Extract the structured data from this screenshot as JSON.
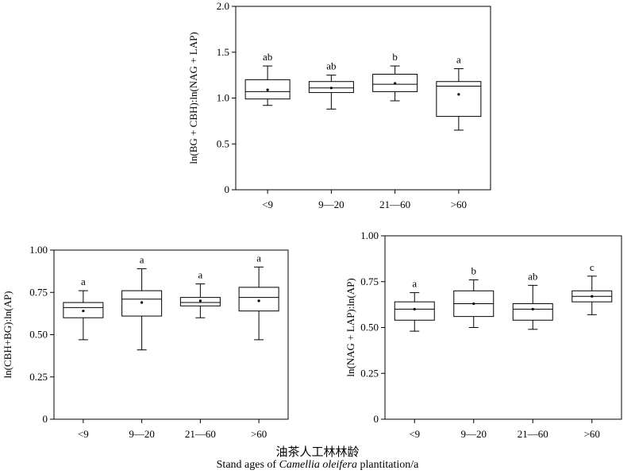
{
  "chart_data": [
    {
      "type": "box",
      "ylabel": "ln(BG + CBH):ln(NAG + LAP)",
      "ylim": [
        0,
        2.0
      ],
      "yticks": [
        "0",
        "0.5",
        "1.0",
        "1.5",
        "2.0"
      ],
      "yticks_values": [
        0,
        0.5,
        1.0,
        1.5,
        2.0
      ],
      "categories": [
        "<9",
        "9—20",
        "21—60",
        ">60"
      ],
      "boxes": [
        {
          "whisker_low": 0.92,
          "q1": 0.99,
          "median": 1.07,
          "q3": 1.2,
          "whisker_high": 1.35,
          "mean": 1.09,
          "letter": "ab"
        },
        {
          "whisker_low": 0.88,
          "q1": 1.06,
          "median": 1.11,
          "q3": 1.18,
          "whisker_high": 1.25,
          "mean": 1.11,
          "letter": "ab"
        },
        {
          "whisker_low": 0.97,
          "q1": 1.07,
          "median": 1.15,
          "q3": 1.26,
          "whisker_high": 1.35,
          "mean": 1.16,
          "letter": "b"
        },
        {
          "whisker_low": 0.65,
          "q1": 0.8,
          "median": 1.13,
          "q3": 1.18,
          "whisker_high": 1.32,
          "mean": 1.04,
          "letter": "a"
        }
      ]
    },
    {
      "type": "box",
      "ylabel": "ln(CBH+BG):ln(AP)",
      "ylim": [
        0,
        1.0
      ],
      "yticks": [
        "0",
        "0.25",
        "0.50",
        "0.75",
        "1.00"
      ],
      "yticks_values": [
        0,
        0.25,
        0.5,
        0.75,
        1.0
      ],
      "categories": [
        "<9",
        "9—20",
        "21—60",
        ">60"
      ],
      "boxes": [
        {
          "whisker_low": 0.47,
          "q1": 0.6,
          "median": 0.66,
          "q3": 0.69,
          "whisker_high": 0.76,
          "mean": 0.64,
          "letter": "a"
        },
        {
          "whisker_low": 0.41,
          "q1": 0.61,
          "median": 0.71,
          "q3": 0.76,
          "whisker_high": 0.89,
          "mean": 0.69,
          "letter": "a"
        },
        {
          "whisker_low": 0.6,
          "q1": 0.67,
          "median": 0.69,
          "q3": 0.72,
          "whisker_high": 0.8,
          "mean": 0.7,
          "letter": "a"
        },
        {
          "whisker_low": 0.47,
          "q1": 0.64,
          "median": 0.72,
          "q3": 0.78,
          "whisker_high": 0.9,
          "mean": 0.7,
          "letter": "a"
        }
      ]
    },
    {
      "type": "box",
      "ylabel": "ln(NAG + LAP):ln(AP)",
      "ylim": [
        0,
        1.0
      ],
      "yticks": [
        "0",
        "0.25",
        "0.50",
        "0.75",
        "1.00"
      ],
      "yticks_values": [
        0,
        0.25,
        0.5,
        0.75,
        1.0
      ],
      "categories": [
        "<9",
        "9—20",
        "21—60",
        ">60"
      ],
      "boxes": [
        {
          "whisker_low": 0.48,
          "q1": 0.54,
          "median": 0.6,
          "q3": 0.64,
          "whisker_high": 0.69,
          "mean": 0.6,
          "letter": "a"
        },
        {
          "whisker_low": 0.5,
          "q1": 0.56,
          "median": 0.63,
          "q3": 0.7,
          "whisker_high": 0.76,
          "mean": 0.63,
          "letter": "b"
        },
        {
          "whisker_low": 0.49,
          "q1": 0.54,
          "median": 0.6,
          "q3": 0.63,
          "whisker_high": 0.73,
          "mean": 0.6,
          "letter": "ab"
        },
        {
          "whisker_low": 0.57,
          "q1": 0.64,
          "median": 0.67,
          "q3": 0.7,
          "whisker_high": 0.78,
          "mean": 0.67,
          "letter": "c"
        }
      ]
    }
  ],
  "caption": {
    "cn": "油茶人工林林龄",
    "en_prefix": "Stand ages of ",
    "en_italic": "Camellia oleifera",
    "en_suffix": " plantitation/a"
  }
}
